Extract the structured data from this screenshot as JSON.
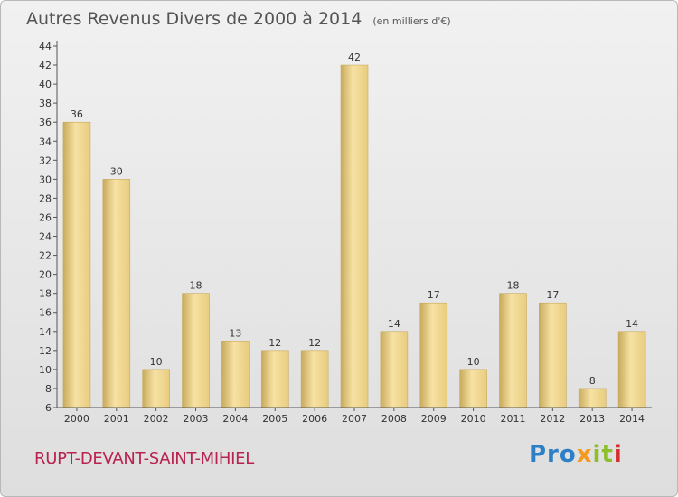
{
  "header": {
    "title": "Autres Revenus Divers de 2000 à 2014",
    "unit": "(en milliers d'€)"
  },
  "footer": {
    "place": "RUPT-DEVANT-SAINT-MIHIEL",
    "logo": {
      "p1": "Pro",
      "p2": "x",
      "p3": "it",
      "p4": "i"
    }
  },
  "colors": {
    "bar": "#e8cc7e",
    "bar_light": "#f7e2a4",
    "bar_dark": "#c8aa5c",
    "axis": "#555555",
    "text": "#333333",
    "title": "#555555",
    "place": "#b8224f"
  },
  "chart_data": {
    "type": "bar",
    "title": "Autres Revenus Divers de 2000 à 2014",
    "xlabel": "",
    "ylabel": "",
    "categories": [
      "2000",
      "2001",
      "2002",
      "2003",
      "2004",
      "2005",
      "2006",
      "2007",
      "2008",
      "2009",
      "2010",
      "2011",
      "2012",
      "2013",
      "2014"
    ],
    "values": [
      36,
      30,
      10,
      18,
      13,
      12,
      12,
      42,
      14,
      17,
      10,
      18,
      17,
      8,
      14
    ],
    "ylim": [
      6,
      44
    ],
    "ytick_step": 2,
    "grid": false,
    "legend": "none",
    "data_labels": true
  }
}
